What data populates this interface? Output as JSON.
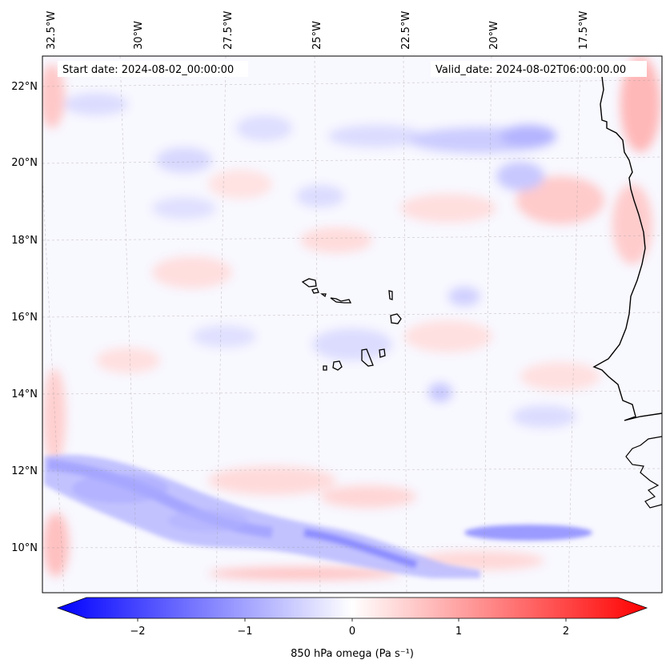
{
  "map": {
    "start_date": "Start date: 2024-08-02_00:00:00",
    "valid_date": "Valid_date: 2024-08-02T06:00:00.00",
    "lon_labels": [
      "32.5°W",
      "30°W",
      "27.5°W",
      "25°W",
      "22.5°W",
      "20°W",
      "17.5°W"
    ],
    "lat_labels": [
      "22°N",
      "20°N",
      "18°N",
      "16°N",
      "14°N",
      "12°N",
      "10°N"
    ],
    "field": "850 hPa omega",
    "projection_hint": "regional map, Cape Verde islands and West African coast",
    "extent": {
      "lon_min": -33.0,
      "lon_max": -15.5,
      "lat_min": 8.9,
      "lat_max": 22.8
    }
  },
  "colorbar": {
    "label": "850 hPa omega (Pa s⁻¹)",
    "ticks": [
      "−2",
      "−1",
      "0",
      "1",
      "2"
    ],
    "tick_values": [
      -2,
      -1,
      0,
      1,
      2
    ],
    "range": [
      -2.75,
      2.75
    ],
    "cmap": "bwr",
    "colors": {
      "neg": "#0000ff",
      "mid": "#ffffff",
      "pos": "#ff0000"
    },
    "extend": "both"
  }
}
